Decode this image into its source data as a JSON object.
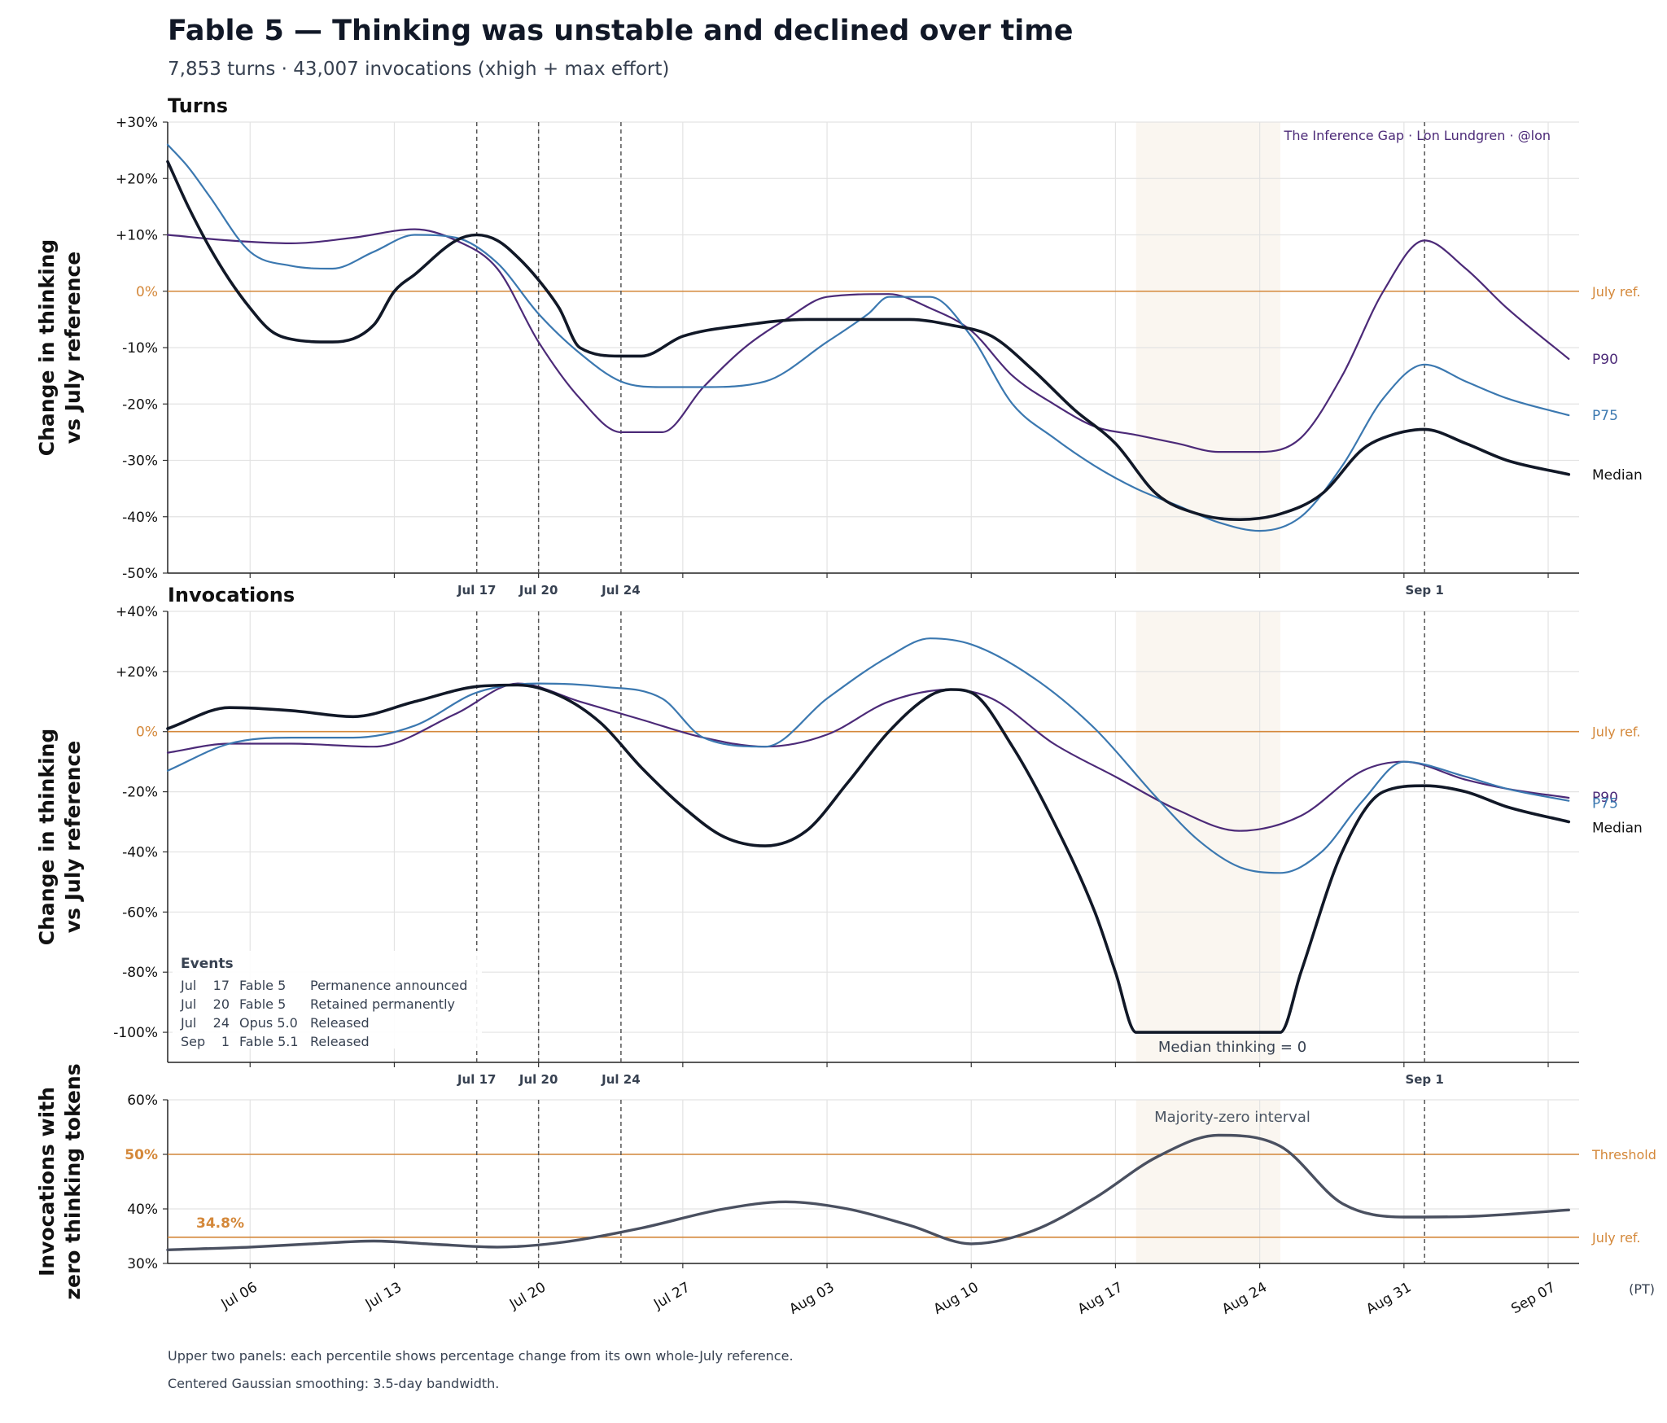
{
  "title": "Fable 5 — Thinking was unstable and declined over time",
  "subtitle": "7,853 turns · 43,007 invocations (xhigh + max effort)",
  "credit": "The Inference Gap · Lon Lundgren · @lon",
  "timezone_label": "(PT)",
  "footnotes": [
    "Upper two panels: each percentile shows percentage change from its own whole-July reference.",
    "Centered Gaussian smoothing: 3.5-day bandwidth."
  ],
  "colors": {
    "median": "#111827",
    "p75": "#3b78b0",
    "p90": "#4c2a78",
    "reference": "#d4883a",
    "shade": "#faf6f0",
    "zero_share": "#4a5060"
  },
  "event_markers": [
    {
      "label": "Jul 17",
      "x": "2025-07-17"
    },
    {
      "label": "Jul 20",
      "x": "2025-07-20"
    },
    {
      "label": "Jul 24",
      "x": "2025-07-24"
    },
    {
      "label": "Sep 1",
      "x": "2025-09-01"
    }
  ],
  "shaded_interval": {
    "start": "2025-08-18",
    "end": "2025-08-25"
  },
  "events_box": {
    "title": "Events",
    "rows": [
      {
        "month": "Jul",
        "day": "17",
        "model": "Fable 5",
        "event": "Permanence announced"
      },
      {
        "month": "Jul",
        "day": "20",
        "model": "Fable 5",
        "event": "Retained permanently"
      },
      {
        "month": "Jul",
        "day": "24",
        "model": "Opus 5.0",
        "event": "Released"
      },
      {
        "month": "Sep",
        "day": "1",
        "model": "Fable 5.1",
        "event": "Released"
      }
    ]
  },
  "chart_data": [
    {
      "type": "line",
      "title": "Turns",
      "ylabel": "Change in thinking vs July reference",
      "ylim": [
        -50,
        30
      ],
      "yticks": [
        "+30%",
        "+20%",
        "+10%",
        "0%",
        "-10%",
        "-20%",
        "-30%",
        "-40%",
        "-50%"
      ],
      "xlim": [
        "2025-07-02",
        "2025-09-08"
      ],
      "xticks": [
        "Jul 06",
        "Jul 13",
        "Jul 20",
        "Jul 27",
        "Aug 03",
        "Aug 10",
        "Aug 17",
        "Aug 24",
        "Aug 31",
        "Sep 07"
      ],
      "reference": {
        "value": 0,
        "label": "July ref."
      },
      "grid": true,
      "series": [
        {
          "name": "P90",
          "x": [
            "2025-07-02",
            "2025-07-05",
            "2025-07-08",
            "2025-07-11",
            "2025-07-14",
            "2025-07-16",
            "2025-07-18",
            "2025-07-20",
            "2025-07-22",
            "2025-07-24",
            "2025-07-26",
            "2025-07-28",
            "2025-07-30",
            "2025-08-01",
            "2025-08-03",
            "2025-08-06",
            "2025-08-08",
            "2025-08-10",
            "2025-08-12",
            "2025-08-14",
            "2025-08-16",
            "2025-08-18",
            "2025-08-20",
            "2025-08-22",
            "2025-08-24",
            "2025-08-26",
            "2025-08-28",
            "2025-08-30",
            "2025-09-01",
            "2025-09-03",
            "2025-09-05",
            "2025-09-08"
          ],
          "values": [
            10,
            9,
            8.5,
            9.5,
            11,
            9,
            4,
            -9,
            -19,
            -25,
            -25,
            -17,
            -10,
            -5,
            -1,
            -0.5,
            -3,
            -7,
            -15,
            -20,
            -24,
            -25.5,
            -27,
            -28.5,
            -28.5,
            -26,
            -15,
            0,
            9,
            4,
            -3,
            -12
          ]
        },
        {
          "name": "P75",
          "x": [
            "2025-07-02",
            "2025-07-03",
            "2025-07-04",
            "2025-07-06",
            "2025-07-08",
            "2025-07-10",
            "2025-07-12",
            "2025-07-14",
            "2025-07-16",
            "2025-07-18",
            "2025-07-20",
            "2025-07-22",
            "2025-07-24",
            "2025-07-26",
            "2025-07-28",
            "2025-07-31",
            "2025-08-03",
            "2025-08-05",
            "2025-08-06",
            "2025-08-08",
            "2025-08-10",
            "2025-08-12",
            "2025-08-14",
            "2025-08-16",
            "2025-08-18",
            "2025-08-20",
            "2025-08-22",
            "2025-08-24",
            "2025-08-26",
            "2025-08-28",
            "2025-08-30",
            "2025-09-01",
            "2025-09-03",
            "2025-09-05",
            "2025-09-08"
          ],
          "values": [
            26,
            22,
            17,
            7,
            4.5,
            4,
            7,
            10,
            9.5,
            5,
            -4,
            -11,
            -16,
            -17,
            -17,
            -16,
            -9,
            -4,
            -1,
            -1,
            -8,
            -20,
            -26,
            -31,
            -35,
            -38,
            -41,
            -42.5,
            -40,
            -31,
            -19,
            -13,
            -16,
            -19,
            -22
          ]
        },
        {
          "name": "Median",
          "x": [
            "2025-07-02",
            "2025-07-03",
            "2025-07-04",
            "2025-07-05",
            "2025-07-06",
            "2025-07-07",
            "2025-07-08",
            "2025-07-10",
            "2025-07-12",
            "2025-07-13",
            "2025-07-14",
            "2025-07-16",
            "2025-07-17",
            "2025-07-18",
            "2025-07-19",
            "2025-07-20",
            "2025-07-21",
            "2025-07-22",
            "2025-07-24",
            "2025-07-25",
            "2025-07-27",
            "2025-07-30",
            "2025-08-02",
            "2025-08-05",
            "2025-08-07",
            "2025-08-09",
            "2025-08-11",
            "2025-08-13",
            "2025-08-15",
            "2025-08-17",
            "2025-08-19",
            "2025-08-21",
            "2025-08-23",
            "2025-08-25",
            "2025-08-27",
            "2025-08-29",
            "2025-08-30",
            "2025-09-01",
            "2025-09-03",
            "2025-09-05",
            "2025-09-08"
          ],
          "values": [
            23,
            15,
            8,
            2,
            -3,
            -7,
            -8.5,
            -9,
            -6,
            0,
            3,
            9,
            10,
            9,
            6,
            2,
            -3,
            -10,
            -11.5,
            -11.5,
            -8,
            -6,
            -5,
            -5,
            -5,
            -6,
            -8,
            -14,
            -21,
            -27,
            -36,
            -39.5,
            -40.5,
            -39.5,
            -36,
            -28,
            -26,
            -24.5,
            -27,
            -30,
            -32.5
          ]
        }
      ]
    },
    {
      "type": "line",
      "title": "Invocations",
      "ylabel": "Change in thinking vs July reference",
      "ylim": [
        -110,
        40
      ],
      "yticks": [
        "+40%",
        "+20%",
        "0%",
        "-20%",
        "-40%",
        "-60%",
        "-80%",
        "-100%"
      ],
      "xlim": [
        "2025-07-02",
        "2025-09-08"
      ],
      "reference": {
        "value": 0,
        "label": "July ref."
      },
      "annotation": "Median thinking = 0",
      "grid": true,
      "series": [
        {
          "name": "P90",
          "x": [
            "2025-07-02",
            "2025-07-05",
            "2025-07-08",
            "2025-07-12",
            "2025-07-16",
            "2025-07-19",
            "2025-07-22",
            "2025-07-25",
            "2025-07-28",
            "2025-07-31",
            "2025-08-03",
            "2025-08-06",
            "2025-08-09",
            "2025-08-11",
            "2025-08-14",
            "2025-08-17",
            "2025-08-20",
            "2025-08-23",
            "2025-08-26",
            "2025-08-29",
            "2025-08-31",
            "2025-09-03",
            "2025-09-05",
            "2025-09-08"
          ],
          "values": [
            -7,
            -4,
            -4,
            -5,
            6,
            16,
            10,
            4,
            -2,
            -5,
            -1,
            10,
            14,
            11,
            -4,
            -15,
            -26,
            -33,
            -28,
            -13,
            -10,
            -16,
            -19,
            -22
          ]
        },
        {
          "name": "P75",
          "x": [
            "2025-07-02",
            "2025-07-05",
            "2025-07-08",
            "2025-07-11",
            "2025-07-14",
            "2025-07-17",
            "2025-07-20",
            "2025-07-23",
            "2025-07-26",
            "2025-07-28",
            "2025-07-31",
            "2025-08-03",
            "2025-08-06",
            "2025-08-08",
            "2025-08-10",
            "2025-08-13",
            "2025-08-16",
            "2025-08-19",
            "2025-08-21",
            "2025-08-23",
            "2025-08-25",
            "2025-08-27",
            "2025-08-29",
            "2025-08-31",
            "2025-09-03",
            "2025-09-05",
            "2025-09-08"
          ],
          "values": [
            -13,
            -4,
            -2,
            -2,
            2,
            13,
            16,
            15,
            11,
            -2,
            -5,
            11,
            25,
            31,
            29,
            18,
            1,
            -22,
            -36,
            -45,
            -47,
            -40,
            -23,
            -10,
            -15,
            -19,
            -23
          ]
        },
        {
          "name": "Median",
          "x": [
            "2025-07-02",
            "2025-07-05",
            "2025-07-08",
            "2025-07-11",
            "2025-07-14",
            "2025-07-17",
            "2025-07-19",
            "2025-07-21",
            "2025-07-23",
            "2025-07-25",
            "2025-07-27",
            "2025-07-29",
            "2025-07-31",
            "2025-08-02",
            "2025-08-04",
            "2025-08-06",
            "2025-08-08",
            "2025-08-09",
            "2025-08-10",
            "2025-08-12",
            "2025-08-14",
            "2025-08-16",
            "2025-08-17",
            "2025-08-18",
            "2025-08-25",
            "2025-08-26",
            "2025-08-28",
            "2025-08-30",
            "2025-09-01",
            "2025-09-03",
            "2025-09-05",
            "2025-09-08"
          ],
          "values": [
            1,
            8,
            7,
            5,
            10,
            15,
            15.5,
            12,
            3,
            -12,
            -25,
            -35,
            -38,
            -33,
            -17,
            0,
            12,
            14,
            13,
            -5,
            -30,
            -60,
            -80,
            -100,
            -100,
            -80,
            -40,
            -20,
            -18,
            -20,
            -25,
            -30
          ]
        }
      ]
    },
    {
      "type": "line",
      "ylabel": "Invocations with zero thinking tokens",
      "ylim": [
        30,
        60
      ],
      "yticks": [
        "60%",
        "50%",
        "40%",
        "30%"
      ],
      "xlim": [
        "2025-07-02",
        "2025-09-08"
      ],
      "xticks": [
        "Jul 06",
        "Jul 13",
        "Jul 20",
        "Jul 27",
        "Aug 03",
        "Aug 10",
        "Aug 17",
        "Aug 24",
        "Aug 31",
        "Sep 07"
      ],
      "threshold": {
        "value": 50,
        "label": "Threshold"
      },
      "reference": {
        "value": 34.8,
        "label": "July ref.",
        "value_label": "34.8%"
      },
      "annotation": "Majority-zero interval",
      "grid": true,
      "series": [
        {
          "x": [
            "2025-07-02",
            "2025-07-06",
            "2025-07-09",
            "2025-07-12",
            "2025-07-15",
            "2025-07-18",
            "2025-07-21",
            "2025-07-25",
            "2025-07-29",
            "2025-08-01",
            "2025-08-04",
            "2025-08-07",
            "2025-08-10",
            "2025-08-13",
            "2025-08-16",
            "2025-08-19",
            "2025-08-22",
            "2025-08-25",
            "2025-08-28",
            "2025-08-31",
            "2025-09-03",
            "2025-09-08"
          ],
          "values": [
            32.5,
            33,
            33.6,
            34.1,
            33.5,
            33,
            33.8,
            36.5,
            40,
            41.3,
            40,
            37,
            33.6,
            36,
            42,
            49.5,
            53.5,
            51.5,
            41,
            38.5,
            38.6,
            39.8
          ]
        }
      ]
    }
  ]
}
